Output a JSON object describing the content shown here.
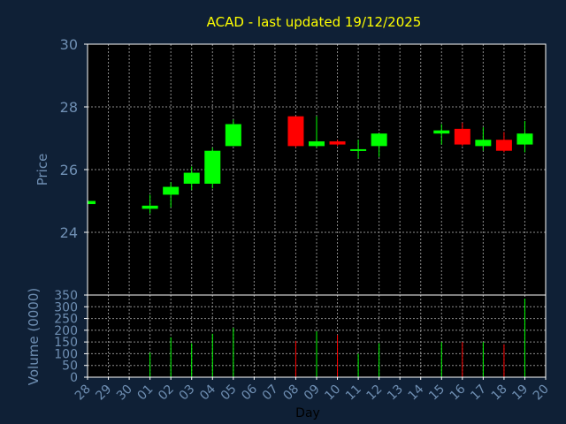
{
  "chart_data": [
    {
      "type": "candlestick",
      "title": "ACAD - last updated 19/12/2025",
      "ylabel": "Price",
      "ylim": [
        22,
        30
      ],
      "yticks": [
        24,
        26,
        28,
        30
      ],
      "grid": true,
      "categories": [
        "28",
        "29",
        "30",
        "01",
        "02",
        "03",
        "04",
        "05",
        "06",
        "07",
        "08",
        "09",
        "10",
        "11",
        "12",
        "13",
        "14",
        "15",
        "16",
        "17",
        "18",
        "19",
        "20"
      ],
      "candles": [
        {
          "day": "28",
          "open": 24.9,
          "high": 25.0,
          "low": 24.88,
          "close": 25.0
        },
        {
          "day": "01",
          "open": 24.75,
          "high": 25.2,
          "low": 24.6,
          "close": 24.85
        },
        {
          "day": "02",
          "open": 25.2,
          "high": 25.6,
          "low": 24.8,
          "close": 25.45
        },
        {
          "day": "03",
          "open": 25.55,
          "high": 26.1,
          "low": 25.35,
          "close": 25.9
        },
        {
          "day": "04",
          "open": 25.55,
          "high": 26.7,
          "low": 25.4,
          "close": 26.6
        },
        {
          "day": "05",
          "open": 26.75,
          "high": 27.6,
          "low": 26.75,
          "close": 27.45
        },
        {
          "day": "08",
          "open": 27.7,
          "high": 27.7,
          "low": 26.7,
          "close": 26.75
        },
        {
          "day": "09",
          "open": 26.75,
          "high": 27.7,
          "low": 26.7,
          "close": 26.9
        },
        {
          "day": "10",
          "open": 26.9,
          "high": 26.95,
          "low": 26.75,
          "close": 26.8
        },
        {
          "day": "11",
          "open": 26.6,
          "high": 26.95,
          "low": 26.35,
          "close": 26.65
        },
        {
          "day": "12",
          "open": 26.75,
          "high": 27.15,
          "low": 26.4,
          "close": 27.15
        },
        {
          "day": "15",
          "open": 27.15,
          "high": 27.45,
          "low": 26.8,
          "close": 27.25
        },
        {
          "day": "16",
          "open": 27.3,
          "high": 27.5,
          "low": 26.75,
          "close": 26.8
        },
        {
          "day": "17",
          "open": 26.75,
          "high": 27.35,
          "low": 26.6,
          "close": 26.95
        },
        {
          "day": "18",
          "open": 26.95,
          "high": 27.2,
          "low": 26.55,
          "close": 26.6
        },
        {
          "day": "19",
          "open": 26.8,
          "high": 27.55,
          "low": 26.55,
          "close": 27.15
        }
      ]
    },
    {
      "type": "bar",
      "xlabel": "Day",
      "ylabel": "Volume (0000)",
      "ylim": [
        0,
        350
      ],
      "yticks": [
        0,
        50,
        100,
        150,
        200,
        250,
        300,
        350
      ],
      "grid": true,
      "categories": [
        "28",
        "29",
        "30",
        "01",
        "02",
        "03",
        "04",
        "05",
        "06",
        "07",
        "08",
        "09",
        "10",
        "11",
        "12",
        "13",
        "14",
        "15",
        "16",
        "17",
        "18",
        "19",
        "20"
      ],
      "bars": [
        {
          "day": "01",
          "value": 105,
          "direction": "up"
        },
        {
          "day": "02",
          "value": 170,
          "direction": "up"
        },
        {
          "day": "03",
          "value": 145,
          "direction": "up"
        },
        {
          "day": "04",
          "value": 185,
          "direction": "up"
        },
        {
          "day": "05",
          "value": 210,
          "direction": "up"
        },
        {
          "day": "08",
          "value": 155,
          "direction": "down"
        },
        {
          "day": "09",
          "value": 195,
          "direction": "up"
        },
        {
          "day": "10",
          "value": 180,
          "direction": "down"
        },
        {
          "day": "11",
          "value": 100,
          "direction": "up"
        },
        {
          "day": "12",
          "value": 145,
          "direction": "up"
        },
        {
          "day": "15",
          "value": 150,
          "direction": "up"
        },
        {
          "day": "16",
          "value": 150,
          "direction": "down"
        },
        {
          "day": "17",
          "value": 150,
          "direction": "up"
        },
        {
          "day": "18",
          "value": 140,
          "direction": "down"
        },
        {
          "day": "19",
          "value": 335,
          "direction": "up"
        }
      ]
    }
  ],
  "colors": {
    "background": "#0f2036",
    "plot_background": "#000000",
    "title": "#ffff00",
    "axis_text": "#6f8fb3",
    "grid": "#8c8c8c",
    "up": "#00ff00",
    "down": "#ff0000"
  }
}
